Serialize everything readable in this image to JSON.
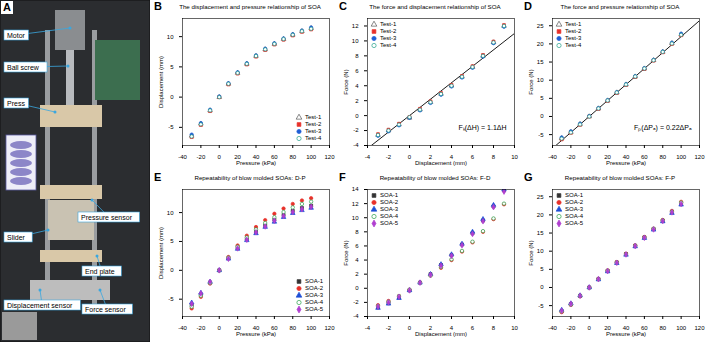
{
  "photo": {
    "panel": "A",
    "labels": [
      "Motor",
      "Ball screw",
      "Press",
      "Pressure sensor",
      "Slider",
      "End plate",
      "Displacement sensor",
      "Force sensor"
    ]
  },
  "chart_data": [
    {
      "panel": "B",
      "type": "scatter",
      "title": "The displacement and pressure relationship of SOA",
      "x_label": "Pressure (kPa)",
      "y_label": "Displacement (mm)",
      "xlim": [
        -40,
        120
      ],
      "xticks": [
        -40,
        -20,
        0,
        20,
        40,
        60,
        80,
        100,
        120
      ],
      "ylim": [
        -8,
        13
      ],
      "yticks": [
        -5,
        0,
        5,
        10
      ],
      "legend": "lower right",
      "x": [
        -30,
        -20,
        -10,
        0,
        10,
        20,
        30,
        40,
        50,
        60,
        70,
        80,
        90,
        100
      ],
      "series": [
        {
          "name": "Test-1",
          "color": "#555555",
          "marker": "open-triangle",
          "values": [
            -6.4,
            -4.4,
            -2.2,
            0,
            2.2,
            4.0,
            5.5,
            6.8,
            7.9,
            8.8,
            9.6,
            10.3,
            10.9,
            11.4
          ]
        },
        {
          "name": "Test-2",
          "color": "#e8302a",
          "marker": "square",
          "values": [
            -6.6,
            -4.6,
            -2.3,
            0,
            2.1,
            3.9,
            5.4,
            6.7,
            7.8,
            8.7,
            9.5,
            10.2,
            10.8,
            11.2
          ]
        },
        {
          "name": "Test-3",
          "color": "#1f5fd6",
          "marker": "circle",
          "values": [
            -6.2,
            -4.3,
            -2.1,
            0.1,
            2.3,
            4.1,
            5.6,
            6.9,
            8.0,
            8.9,
            9.7,
            10.4,
            11.0,
            11.5
          ]
        },
        {
          "name": "Test-4",
          "color": "#22a08a",
          "marker": "open-circle",
          "values": [
            -6.5,
            -4.5,
            -2.2,
            0,
            2.2,
            4.0,
            5.5,
            6.8,
            7.9,
            8.8,
            9.6,
            10.3,
            10.9,
            11.3
          ]
        }
      ]
    },
    {
      "panel": "C",
      "type": "scatter",
      "title": "The force and displacement relationship of SOA",
      "x_label": "Displacement (mm)",
      "y_label": "Force (N)",
      "xlim": [
        -4,
        10
      ],
      "xticks": [
        -4,
        -2,
        0,
        2,
        4,
        6,
        8,
        10
      ],
      "ylim": [
        -4,
        13
      ],
      "yticks": [
        -4,
        -2,
        0,
        2,
        4,
        6,
        8,
        10,
        12
      ],
      "legend": "upper left",
      "annotation": "Fₖ(ΔH) = 1.1ΔH",
      "fit": {
        "x": [
          -4,
          10
        ],
        "values": [
          -4.4,
          11
        ],
        "color": "#000000"
      },
      "x": [
        -3,
        -2,
        -1,
        0,
        1,
        2,
        3,
        4,
        5,
        6,
        7,
        8,
        9
      ],
      "series": [
        {
          "name": "Test-1",
          "color": "#555555",
          "marker": "open-triangle",
          "values": [
            -2.6,
            -2.0,
            -1.2,
            -0.3,
            0.8,
            1.8,
            2.9,
            4.0,
            5.2,
            6.5,
            8.0,
            9.8,
            12.0
          ]
        },
        {
          "name": "Test-2",
          "color": "#e8302a",
          "marker": "square",
          "values": [
            -2.5,
            -1.9,
            -1.1,
            -0.2,
            0.9,
            1.9,
            3.0,
            4.1,
            5.3,
            6.6,
            8.1,
            9.9,
            12.1
          ]
        },
        {
          "name": "Test-3",
          "color": "#1f5fd6",
          "marker": "circle",
          "values": [
            -2.7,
            -2.1,
            -1.3,
            -0.3,
            0.7,
            1.7,
            2.8,
            3.9,
            5.1,
            6.4,
            7.9,
            9.7,
            11.9
          ]
        },
        {
          "name": "Test-4",
          "color": "#22a08a",
          "marker": "open-circle",
          "values": [
            -2.6,
            -2.0,
            -1.2,
            -0.2,
            0.8,
            1.8,
            2.9,
            4.0,
            5.2,
            6.5,
            8.0,
            9.8,
            12.0
          ]
        }
      ]
    },
    {
      "panel": "D",
      "type": "scatter",
      "title": "The force and pressure relationship of SOA",
      "x_label": "Pressure (kPa)",
      "y_label": "Force (N)",
      "xlim": [
        -40,
        120
      ],
      "xticks": [
        -40,
        -20,
        0,
        20,
        40,
        60,
        80,
        100,
        120
      ],
      "ylim": [
        -8,
        27
      ],
      "yticks": [
        -5,
        0,
        5,
        10,
        15,
        20,
        25
      ],
      "legend": "upper left",
      "annotation": "Fₚ(ΔPₐ) = 0.22ΔPₐ",
      "fit": {
        "x": [
          -40,
          120
        ],
        "values": [
          -8.8,
          26.4
        ],
        "color": "#000000"
      },
      "x": [
        -30,
        -20,
        -10,
        0,
        10,
        20,
        30,
        40,
        50,
        60,
        70,
        80,
        90,
        100
      ],
      "series": [
        {
          "name": "Test-1",
          "color": "#555555",
          "marker": "open-triangle",
          "values": [
            -6.0,
            -4.3,
            -2.1,
            0,
            2.2,
            4.4,
            6.6,
            8.8,
            11.0,
            13.2,
            15.5,
            17.8,
            20.2,
            22.6
          ]
        },
        {
          "name": "Test-2",
          "color": "#e8302a",
          "marker": "square",
          "values": [
            -6.3,
            -4.5,
            -2.3,
            0,
            2.1,
            4.3,
            6.5,
            8.7,
            10.9,
            13.1,
            15.4,
            17.7,
            20.0,
            22.4
          ]
        },
        {
          "name": "Test-3",
          "color": "#1f5fd6",
          "marker": "circle",
          "values": [
            -5.8,
            -4.1,
            -2.0,
            0.1,
            2.3,
            4.5,
            6.7,
            8.9,
            11.1,
            13.3,
            15.6,
            17.9,
            20.3,
            22.8
          ]
        },
        {
          "name": "Test-4",
          "color": "#22a08a",
          "marker": "open-circle",
          "values": [
            -6.1,
            -4.4,
            -2.2,
            0,
            2.2,
            4.4,
            6.6,
            8.8,
            11.0,
            13.2,
            15.5,
            17.8,
            20.1,
            22.5
          ]
        }
      ]
    },
    {
      "panel": "E",
      "type": "scatter",
      "title": "Repeatability of blow molded SOAs: D-P",
      "x_label": "Pressure (kPa)",
      "y_label": "Displacement (mm)",
      "xlim": [
        -40,
        120
      ],
      "xticks": [
        -40,
        -20,
        0,
        20,
        40,
        60,
        80,
        100,
        120
      ],
      "ylim": [
        -8,
        14
      ],
      "yticks": [
        -5,
        0,
        5,
        10
      ],
      "legend": "lower right",
      "x": [
        -30,
        -20,
        -10,
        0,
        10,
        20,
        30,
        40,
        50,
        60,
        70,
        80,
        90,
        100
      ],
      "series": [
        {
          "name": "SOA-1",
          "color": "#333333",
          "marker": "square",
          "values": [
            -6.0,
            -4.2,
            -2.1,
            0,
            2.1,
            3.9,
            5.4,
            6.7,
            7.8,
            8.8,
            9.6,
            10.3,
            10.8,
            11.2
          ]
        },
        {
          "name": "SOA-2",
          "color": "#e8302a",
          "marker": "circle",
          "values": [
            -6.6,
            -4.6,
            -2.3,
            0,
            2.3,
            4.3,
            6.0,
            7.5,
            8.7,
            9.8,
            10.7,
            11.5,
            12.1,
            12.5
          ]
        },
        {
          "name": "SOA-3",
          "color": "#1f4fd6",
          "marker": "triangle",
          "values": [
            -5.6,
            -3.9,
            -2.0,
            0,
            2.0,
            3.7,
            5.2,
            6.4,
            7.5,
            8.4,
            9.2,
            9.9,
            10.4,
            10.8
          ]
        },
        {
          "name": "SOA-4",
          "color": "#2aa04a",
          "marker": "open-circle",
          "values": [
            -6.3,
            -4.4,
            -2.2,
            0,
            2.2,
            4.1,
            5.7,
            7.1,
            8.2,
            9.2,
            10.1,
            10.9,
            11.5,
            11.9
          ]
        },
        {
          "name": "SOA-5",
          "color": "#b03fd0",
          "marker": "diamond",
          "values": [
            -5.8,
            -4.0,
            -2.0,
            0,
            2.0,
            3.8,
            5.3,
            6.6,
            7.6,
            8.6,
            9.4,
            10.1,
            10.6,
            11.0
          ]
        }
      ]
    },
    {
      "panel": "F",
      "type": "scatter",
      "title": "Repeatability of blow molded SOAs: F-D",
      "x_label": "Displacement (mm)",
      "y_label": "Force (N)",
      "xlim": [
        -4,
        10
      ],
      "xticks": [
        -4,
        -2,
        0,
        2,
        4,
        6,
        8,
        10
      ],
      "ylim": [
        -4,
        14
      ],
      "yticks": [
        -4,
        -2,
        0,
        2,
        4,
        6,
        8,
        10,
        12,
        14
      ],
      "legend": "upper left",
      "x": [
        -3,
        -2,
        -1,
        0,
        1,
        2,
        3,
        4,
        5,
        6,
        7,
        8,
        9
      ],
      "series": [
        {
          "name": "SOA-1",
          "color": "#333333",
          "marker": "square",
          "values": [
            -2.7,
            -2.1,
            -1.3,
            -0.3,
            0.8,
            2.0,
            3.3,
            4.7,
            6.2,
            7.8,
            9.6,
            11.6,
            13.9
          ]
        },
        {
          "name": "SOA-2",
          "color": "#e8302a",
          "marker": "circle",
          "values": [
            -2.4,
            -1.8,
            -1.1,
            -0.2,
            0.8,
            1.8,
            2.9,
            4.0,
            5.2,
            6.5,
            8.0,
            9.8,
            11.9
          ]
        },
        {
          "name": "SOA-3",
          "color": "#1f4fd6",
          "marker": "triangle",
          "values": [
            -2.8,
            -2.2,
            -1.4,
            -0.3,
            0.8,
            2.0,
            3.4,
            4.8,
            6.3,
            8.0,
            9.8,
            11.8,
            14.0
          ]
        },
        {
          "name": "SOA-4",
          "color": "#2aa04a",
          "marker": "open-circle",
          "values": [
            -2.5,
            -1.9,
            -1.1,
            -0.2,
            0.8,
            1.8,
            3.0,
            4.1,
            5.3,
            6.6,
            8.1,
            9.9,
            12.0
          ]
        },
        {
          "name": "SOA-5",
          "color": "#b03fd0",
          "marker": "diamond",
          "values": [
            -2.6,
            -2.0,
            -1.2,
            -0.3,
            0.8,
            1.9,
            3.2,
            4.6,
            6.1,
            7.7,
            9.5,
            11.5,
            13.7
          ]
        }
      ]
    },
    {
      "panel": "G",
      "type": "scatter",
      "title": "Repeatability of blow molded SOAs: F-P",
      "x_label": "Pressure (kPa)",
      "y_label": "Force (N)",
      "xlim": [
        -40,
        120
      ],
      "xticks": [
        -40,
        -20,
        0,
        20,
        40,
        60,
        80,
        100,
        120
      ],
      "ylim": [
        -8,
        27
      ],
      "yticks": [
        -5,
        0,
        5,
        10,
        15,
        20,
        25
      ],
      "legend": "upper left",
      "x": [
        -30,
        -20,
        -10,
        0,
        10,
        20,
        30,
        40,
        50,
        60,
        70,
        80,
        90,
        100
      ],
      "series": [
        {
          "name": "SOA-1",
          "color": "#333333",
          "marker": "square",
          "values": [
            -6.5,
            -4.6,
            -2.3,
            0,
            2.3,
            4.6,
            6.9,
            9.2,
            11.5,
            13.8,
            16.1,
            18.4,
            20.8,
            23.2
          ]
        },
        {
          "name": "SOA-2",
          "color": "#e8302a",
          "marker": "circle",
          "values": [
            -6.8,
            -4.8,
            -2.4,
            0,
            2.4,
            4.7,
            7.0,
            9.3,
            11.6,
            13.9,
            16.2,
            18.6,
            21.1,
            23.6
          ]
        },
        {
          "name": "SOA-3",
          "color": "#1f4fd6",
          "marker": "triangle",
          "values": [
            -6.2,
            -4.4,
            -2.2,
            0,
            2.2,
            4.4,
            6.7,
            9.0,
            11.3,
            13.6,
            15.9,
            18.2,
            20.5,
            22.8
          ]
        },
        {
          "name": "SOA-4",
          "color": "#2aa04a",
          "marker": "open-circle",
          "values": [
            -6.6,
            -4.7,
            -2.3,
            0,
            2.3,
            4.6,
            6.9,
            9.2,
            11.5,
            13.8,
            16.2,
            18.5,
            20.9,
            23.4
          ]
        },
        {
          "name": "SOA-5",
          "color": "#b03fd0",
          "marker": "diamond",
          "values": [
            -6.4,
            -4.5,
            -2.3,
            0,
            2.3,
            4.5,
            6.8,
            9.1,
            11.4,
            13.7,
            16.0,
            18.3,
            20.7,
            23.0
          ]
        }
      ]
    }
  ]
}
